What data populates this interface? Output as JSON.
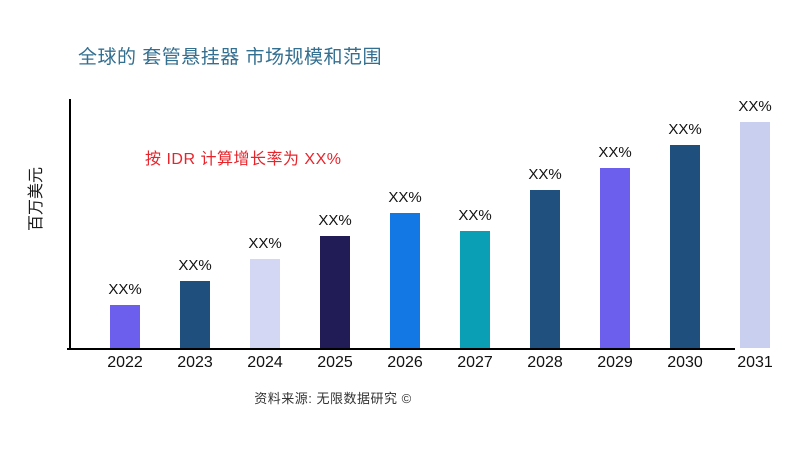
{
  "page": {
    "title": "全球的 套管悬挂器 市场规模和范围",
    "annotation": "按 IDR 计算增长率为 XX%",
    "source_note": "资料来源: 无限数据研究 ©"
  },
  "colors": {
    "title": "#336f90",
    "annotation": "#e8242b",
    "axis": "#000000",
    "text": "#111111"
  },
  "chart_data": {
    "type": "bar",
    "title": "全球的 套管悬挂器 市场规模和范围",
    "ylabel": "百万美元",
    "xlabel": "",
    "categories": [
      "2022",
      "2023",
      "2024",
      "2025",
      "2026",
      "2027",
      "2028",
      "2029",
      "2030",
      "2031"
    ],
    "values": [
      43,
      67,
      89,
      112,
      135,
      117,
      158,
      180,
      203,
      226
    ],
    "value_labels": [
      "XX%",
      "XX%",
      "XX%",
      "XX%",
      "XX%",
      "XX%",
      "XX%",
      "XX%",
      "XX%",
      "XX%"
    ],
    "bar_colors": [
      "#6c5fee",
      "#1f4f7d",
      "#d4d7f3",
      "#221c56",
      "#1478e4",
      "#0a9fb5",
      "#20507e",
      "#6c5fee",
      "#1f4f7d",
      "#c9cfef"
    ],
    "ylim": [
      0,
      250
    ],
    "grid": false,
    "legend": null,
    "annotation": "按 IDR 计算增长率为 XX%",
    "source": "资料来源: 无限数据研究 ©"
  }
}
